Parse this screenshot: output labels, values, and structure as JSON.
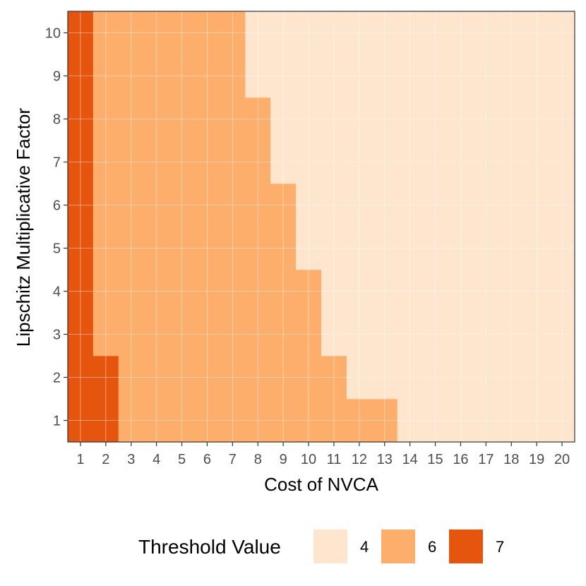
{
  "chart_data": {
    "type": "heatmap",
    "xlabel": "Cost of NVCA",
    "ylabel": "Lipschitz Multiplicative Factor",
    "x": [
      1,
      2,
      3,
      4,
      5,
      6,
      7,
      8,
      9,
      10,
      11,
      12,
      13,
      14,
      15,
      16,
      17,
      18,
      19,
      20
    ],
    "y": [
      1,
      2,
      3,
      4,
      5,
      6,
      7,
      8,
      9,
      10
    ],
    "thresholds_by_y": [
      {
        "y": 1,
        "values": [
          7,
          7,
          6,
          6,
          6,
          6,
          6,
          6,
          6,
          6,
          6,
          6,
          6,
          4,
          4,
          4,
          4,
          4,
          4,
          4
        ]
      },
      {
        "y": 2,
        "values": [
          7,
          7,
          6,
          6,
          6,
          6,
          6,
          6,
          6,
          6,
          6,
          4,
          4,
          4,
          4,
          4,
          4,
          4,
          4,
          4
        ]
      },
      {
        "y": 3,
        "values": [
          7,
          6,
          6,
          6,
          6,
          6,
          6,
          6,
          6,
          6,
          4,
          4,
          4,
          4,
          4,
          4,
          4,
          4,
          4,
          4
        ]
      },
      {
        "y": 4,
        "values": [
          7,
          6,
          6,
          6,
          6,
          6,
          6,
          6,
          6,
          6,
          4,
          4,
          4,
          4,
          4,
          4,
          4,
          4,
          4,
          4
        ]
      },
      {
        "y": 5,
        "values": [
          7,
          6,
          6,
          6,
          6,
          6,
          6,
          6,
          6,
          4,
          4,
          4,
          4,
          4,
          4,
          4,
          4,
          4,
          4,
          4
        ]
      },
      {
        "y": 6,
        "values": [
          7,
          6,
          6,
          6,
          6,
          6,
          6,
          6,
          6,
          4,
          4,
          4,
          4,
          4,
          4,
          4,
          4,
          4,
          4,
          4
        ]
      },
      {
        "y": 7,
        "values": [
          7,
          6,
          6,
          6,
          6,
          6,
          6,
          6,
          4,
          4,
          4,
          4,
          4,
          4,
          4,
          4,
          4,
          4,
          4,
          4
        ]
      },
      {
        "y": 8,
        "values": [
          7,
          6,
          6,
          6,
          6,
          6,
          6,
          6,
          4,
          4,
          4,
          4,
          4,
          4,
          4,
          4,
          4,
          4,
          4,
          4
        ]
      },
      {
        "y": 9,
        "values": [
          7,
          6,
          6,
          6,
          6,
          6,
          6,
          4,
          4,
          4,
          4,
          4,
          4,
          4,
          4,
          4,
          4,
          4,
          4,
          4
        ]
      },
      {
        "y": 10,
        "values": [
          7,
          6,
          6,
          6,
          6,
          6,
          6,
          4,
          4,
          4,
          4,
          4,
          4,
          4,
          4,
          4,
          4,
          4,
          4,
          4
        ]
      }
    ],
    "legend": {
      "title": "Threshold Value",
      "placement": "bottom",
      "items": [
        {
          "label": "4",
          "value": 4,
          "color": "#fee6ce"
        },
        {
          "label": "6",
          "value": 6,
          "color": "#fdae6b"
        },
        {
          "label": "7",
          "value": 7,
          "color": "#e6550d"
        }
      ]
    },
    "grid": true
  }
}
